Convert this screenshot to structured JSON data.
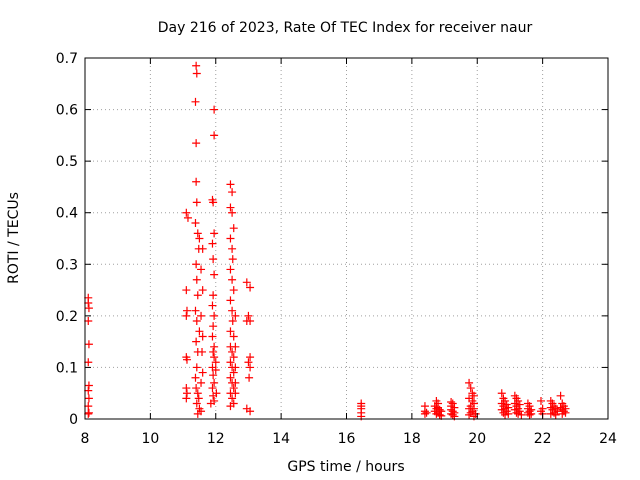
{
  "chart_data": {
    "type": "scatter",
    "title": "Day 216 of 2023, Rate Of TEC Index for receiver naur",
    "xlabel": "GPS time / hours",
    "ylabel": "ROTI / TECUs",
    "xlim": [
      8,
      24
    ],
    "ylim": [
      0,
      0.7
    ],
    "xticks": [
      8,
      10,
      12,
      14,
      16,
      18,
      20,
      22,
      24
    ],
    "yticks": [
      0,
      0.1,
      0.2,
      0.3,
      0.4,
      0.5,
      0.6,
      0.7
    ],
    "xtick_labels": [
      "8",
      "10",
      "12",
      "14",
      "16",
      "18",
      "20",
      "22",
      "24"
    ],
    "ytick_labels": [
      "0",
      "0.1",
      "0.2",
      "0.3",
      "0.4",
      "0.5",
      "0.6",
      "0.7"
    ],
    "grid": true,
    "marker": "plus",
    "color": "#ff0000",
    "points": [
      [
        8.1,
        0.235
      ],
      [
        8.1,
        0.225
      ],
      [
        8.12,
        0.215
      ],
      [
        8.1,
        0.19
      ],
      [
        8.12,
        0.145
      ],
      [
        8.1,
        0.11
      ],
      [
        8.12,
        0.065
      ],
      [
        8.1,
        0.055
      ],
      [
        8.12,
        0.04
      ],
      [
        8.1,
        0.025
      ],
      [
        8.12,
        0.012
      ],
      [
        8.1,
        0.01
      ],
      [
        11.1,
        0.4
      ],
      [
        11.15,
        0.39
      ],
      [
        11.1,
        0.25
      ],
      [
        11.12,
        0.21
      ],
      [
        11.1,
        0.2
      ],
      [
        11.1,
        0.12
      ],
      [
        11.12,
        0.115
      ],
      [
        11.1,
        0.06
      ],
      [
        11.12,
        0.05
      ],
      [
        11.1,
        0.04
      ],
      [
        11.4,
        0.685
      ],
      [
        11.42,
        0.67
      ],
      [
        11.38,
        0.615
      ],
      [
        11.4,
        0.535
      ],
      [
        11.4,
        0.46
      ],
      [
        11.42,
        0.42
      ],
      [
        11.38,
        0.38
      ],
      [
        11.45,
        0.36
      ],
      [
        11.5,
        0.35
      ],
      [
        11.48,
        0.33
      ],
      [
        11.4,
        0.3
      ],
      [
        11.42,
        0.27
      ],
      [
        11.45,
        0.24
      ],
      [
        11.38,
        0.21
      ],
      [
        11.42,
        0.19
      ],
      [
        11.5,
        0.17
      ],
      [
        11.4,
        0.15
      ],
      [
        11.45,
        0.13
      ],
      [
        11.42,
        0.1
      ],
      [
        11.38,
        0.08
      ],
      [
        11.4,
        0.06
      ],
      [
        11.45,
        0.05
      ],
      [
        11.48,
        0.04
      ],
      [
        11.42,
        0.03
      ],
      [
        11.5,
        0.02
      ],
      [
        11.55,
        0.015
      ],
      [
        11.45,
        0.01
      ],
      [
        11.6,
        0.33
      ],
      [
        11.55,
        0.29
      ],
      [
        11.6,
        0.25
      ],
      [
        11.55,
        0.2
      ],
      [
        11.6,
        0.16
      ],
      [
        11.58,
        0.13
      ],
      [
        11.6,
        0.09
      ],
      [
        11.55,
        0.07
      ],
      [
        11.95,
        0.6
      ],
      [
        11.95,
        0.55
      ],
      [
        11.9,
        0.425
      ],
      [
        11.92,
        0.42
      ],
      [
        11.95,
        0.36
      ],
      [
        11.9,
        0.34
      ],
      [
        11.92,
        0.31
      ],
      [
        11.95,
        0.28
      ],
      [
        11.92,
        0.24
      ],
      [
        11.9,
        0.22
      ],
      [
        11.95,
        0.2
      ],
      [
        11.92,
        0.18
      ],
      [
        11.9,
        0.16
      ],
      [
        11.95,
        0.14
      ],
      [
        11.92,
        0.13
      ],
      [
        11.95,
        0.12
      ],
      [
        11.9,
        0.1
      ],
      [
        11.92,
        0.085
      ],
      [
        11.95,
        0.07
      ],
      [
        11.9,
        0.06
      ],
      [
        11.92,
        0.045
      ],
      [
        11.95,
        0.035
      ],
      [
        11.85,
        0.03
      ],
      [
        12.0,
        0.11
      ],
      [
        12.0,
        0.095
      ],
      [
        12.02,
        0.05
      ],
      [
        12.45,
        0.455
      ],
      [
        12.5,
        0.44
      ],
      [
        12.45,
        0.41
      ],
      [
        12.5,
        0.4
      ],
      [
        12.55,
        0.37
      ],
      [
        12.45,
        0.35
      ],
      [
        12.5,
        0.33
      ],
      [
        12.52,
        0.31
      ],
      [
        12.45,
        0.29
      ],
      [
        12.5,
        0.27
      ],
      [
        12.55,
        0.25
      ],
      [
        12.45,
        0.23
      ],
      [
        12.5,
        0.21
      ],
      [
        12.52,
        0.19
      ],
      [
        12.45,
        0.17
      ],
      [
        12.55,
        0.16
      ],
      [
        12.45,
        0.14
      ],
      [
        12.5,
        0.13
      ],
      [
        12.55,
        0.12
      ],
      [
        12.45,
        0.11
      ],
      [
        12.5,
        0.1
      ],
      [
        12.55,
        0.09
      ],
      [
        12.45,
        0.08
      ],
      [
        12.5,
        0.07
      ],
      [
        12.55,
        0.06
      ],
      [
        12.45,
        0.05
      ],
      [
        12.5,
        0.04
      ],
      [
        12.55,
        0.03
      ],
      [
        12.45,
        0.025
      ],
      [
        12.6,
        0.2
      ],
      [
        12.6,
        0.14
      ],
      [
        12.6,
        0.1
      ],
      [
        12.6,
        0.07
      ],
      [
        12.6,
        0.05
      ],
      [
        12.95,
        0.265
      ],
      [
        13.05,
        0.255
      ],
      [
        13.0,
        0.2
      ],
      [
        12.95,
        0.19
      ],
      [
        13.05,
        0.19
      ],
      [
        13.05,
        0.12
      ],
      [
        13.0,
        0.11
      ],
      [
        13.05,
        0.1
      ],
      [
        13.02,
        0.08
      ],
      [
        12.95,
        0.02
      ],
      [
        13.05,
        0.015
      ],
      [
        16.45,
        0.03
      ],
      [
        16.45,
        0.025
      ],
      [
        16.45,
        0.02
      ],
      [
        16.45,
        0.012
      ],
      [
        16.45,
        0.005
      ],
      [
        18.4,
        0.025
      ],
      [
        18.4,
        0.015
      ],
      [
        18.45,
        0.012
      ],
      [
        18.4,
        0.01
      ],
      [
        18.75,
        0.035
      ],
      [
        18.8,
        0.03
      ],
      [
        18.7,
        0.025
      ],
      [
        18.8,
        0.022
      ],
      [
        18.75,
        0.02
      ],
      [
        18.85,
        0.018
      ],
      [
        18.7,
        0.015
      ],
      [
        18.8,
        0.012
      ],
      [
        18.75,
        0.01
      ],
      [
        18.85,
        0.008
      ],
      [
        18.9,
        0.015
      ],
      [
        18.9,
        0.006
      ],
      [
        19.2,
        0.033
      ],
      [
        19.25,
        0.03
      ],
      [
        19.2,
        0.025
      ],
      [
        19.3,
        0.022
      ],
      [
        19.2,
        0.018
      ],
      [
        19.25,
        0.015
      ],
      [
        19.3,
        0.012
      ],
      [
        19.2,
        0.01
      ],
      [
        19.25,
        0.008
      ],
      [
        19.3,
        0.005
      ],
      [
        19.75,
        0.07
      ],
      [
        19.8,
        0.06
      ],
      [
        19.85,
        0.05
      ],
      [
        19.9,
        0.045
      ],
      [
        19.75,
        0.04
      ],
      [
        19.85,
        0.035
      ],
      [
        19.9,
        0.03
      ],
      [
        19.8,
        0.025
      ],
      [
        19.75,
        0.02
      ],
      [
        19.9,
        0.02
      ],
      [
        19.85,
        0.015
      ],
      [
        19.8,
        0.012
      ],
      [
        19.95,
        0.01
      ],
      [
        19.75,
        0.008
      ],
      [
        19.9,
        0.005
      ],
      [
        20.75,
        0.05
      ],
      [
        20.8,
        0.04
      ],
      [
        20.85,
        0.035
      ],
      [
        20.75,
        0.03
      ],
      [
        20.9,
        0.028
      ],
      [
        20.8,
        0.025
      ],
      [
        20.95,
        0.022
      ],
      [
        20.85,
        0.02
      ],
      [
        20.75,
        0.018
      ],
      [
        20.9,
        0.015
      ],
      [
        20.8,
        0.012
      ],
      [
        20.95,
        0.01
      ],
      [
        20.85,
        0.008
      ],
      [
        21.15,
        0.045
      ],
      [
        21.2,
        0.04
      ],
      [
        21.25,
        0.035
      ],
      [
        21.15,
        0.03
      ],
      [
        21.3,
        0.028
      ],
      [
        21.2,
        0.025
      ],
      [
        21.25,
        0.02
      ],
      [
        21.15,
        0.018
      ],
      [
        21.3,
        0.015
      ],
      [
        21.2,
        0.012
      ],
      [
        21.25,
        0.01
      ],
      [
        21.35,
        0.008
      ],
      [
        21.55,
        0.03
      ],
      [
        21.6,
        0.025
      ],
      [
        21.55,
        0.02
      ],
      [
        21.65,
        0.018
      ],
      [
        21.6,
        0.015
      ],
      [
        21.55,
        0.012
      ],
      [
        21.65,
        0.01
      ],
      [
        21.6,
        0.008
      ],
      [
        21.95,
        0.035
      ],
      [
        22.0,
        0.02
      ],
      [
        21.95,
        0.015
      ],
      [
        22.0,
        0.01
      ],
      [
        22.25,
        0.035
      ],
      [
        22.3,
        0.03
      ],
      [
        22.35,
        0.025
      ],
      [
        22.25,
        0.022
      ],
      [
        22.4,
        0.02
      ],
      [
        22.3,
        0.018
      ],
      [
        22.45,
        0.015
      ],
      [
        22.35,
        0.012
      ],
      [
        22.25,
        0.01
      ],
      [
        22.4,
        0.008
      ],
      [
        22.55,
        0.045
      ],
      [
        22.6,
        0.03
      ],
      [
        22.65,
        0.025
      ],
      [
        22.55,
        0.022
      ],
      [
        22.7,
        0.02
      ],
      [
        22.6,
        0.018
      ],
      [
        22.65,
        0.015
      ],
      [
        22.7,
        0.012
      ],
      [
        22.6,
        0.01
      ]
    ]
  }
}
